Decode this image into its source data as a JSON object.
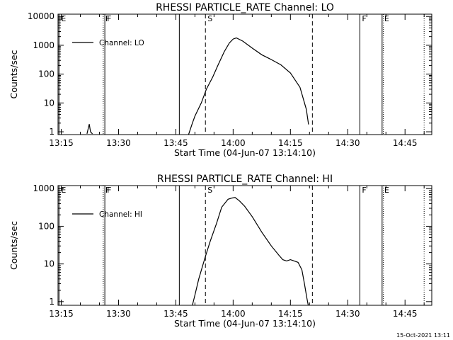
{
  "footer": {
    "timestamp": "15-Oct-2021 13:11"
  },
  "chart_data": [
    {
      "type": "line",
      "title": "RHESSI PARTICLE_RATE Channel: LO",
      "xlabel": "Start Time (04-Jun-07 13:14:10)",
      "ylabel": "Counts/sec",
      "yscale": "log",
      "ylim": [
        0.8,
        12000
      ],
      "xlim": [
        "13:14:10",
        "14:52:00"
      ],
      "x_ticks": [
        "13:15",
        "13:30",
        "13:45",
        "14:00",
        "14:15",
        "14:30",
        "14:45"
      ],
      "y_ticks": [
        "1",
        "10",
        "100",
        "1000",
        "10000"
      ],
      "legend": {
        "position": "top-left",
        "entries": [
          "Channel: LO"
        ]
      },
      "markers": [
        {
          "label": "E",
          "time": "13:14:25",
          "style": "solid"
        },
        {
          "label": "F",
          "time": "13:26:00",
          "style": "dotted"
        },
        {
          "label": "F",
          "time": "13:26:25",
          "style": "solid"
        },
        {
          "label": "",
          "time": "13:45:55",
          "style": "solid"
        },
        {
          "label": "S",
          "time": "13:52:45",
          "style": "dashed"
        },
        {
          "label": "",
          "time": "14:20:45",
          "style": "dashed"
        },
        {
          "label": "F",
          "time": "14:33:10",
          "style": "solid"
        },
        {
          "label": "E",
          "time": "14:39:00",
          "style": "solid"
        },
        {
          "label": "",
          "time": "14:39:20",
          "style": "dotted"
        },
        {
          "label": "",
          "time": "14:50:00",
          "style": "dotted"
        }
      ],
      "series": [
        {
          "name": "Channel: LO",
          "segments": [
            {
              "x": [
                "13:21:45",
                "13:22:20",
                "13:22:40",
                "13:23:10"
              ],
              "y": [
                0.85,
                1.85,
                1.0,
                0.85
              ]
            },
            {
              "x": [
                "13:48:20",
                "13:49:20",
                "13:50:00",
                "13:51:40",
                "13:53:00",
                "13:54:40",
                "13:56:00",
                "13:57:40",
                "13:59:00",
                "14:00:00",
                "14:00:50",
                "14:02:30",
                "14:05:00",
                "14:07:30",
                "14:10:00",
                "14:12:30",
                "14:15:00",
                "14:17:30",
                "14:19:10",
                "14:19:45"
              ],
              "y": [
                0.8,
                2,
                3.5,
                10,
                30,
                80,
                200,
                600,
                1200,
                1650,
                1800,
                1400,
                800,
                470,
                320,
                210,
                110,
                35,
                6,
                1.8
              ]
            }
          ]
        }
      ]
    },
    {
      "type": "line",
      "title": "RHESSI PARTICLE_RATE Channel: HI",
      "xlabel": "Start Time (04-Jun-07 13:14:10)",
      "ylabel": "Counts/sec",
      "yscale": "log",
      "ylim": [
        0.8,
        1200
      ],
      "xlim": [
        "13:14:10",
        "14:52:00"
      ],
      "x_ticks": [
        "13:15",
        "13:30",
        "13:45",
        "14:00",
        "14:15",
        "14:30",
        "14:45"
      ],
      "y_ticks": [
        "1",
        "10",
        "100",
        "1000"
      ],
      "legend": {
        "position": "top-left",
        "entries": [
          "Channel: HI"
        ]
      },
      "markers": [
        {
          "label": "E",
          "time": "13:14:25",
          "style": "solid"
        },
        {
          "label": "F",
          "time": "13:26:00",
          "style": "dotted"
        },
        {
          "label": "F",
          "time": "13:26:25",
          "style": "solid"
        },
        {
          "label": "",
          "time": "13:45:55",
          "style": "solid"
        },
        {
          "label": "S",
          "time": "13:52:45",
          "style": "dashed"
        },
        {
          "label": "",
          "time": "14:20:45",
          "style": "dashed"
        },
        {
          "label": "F",
          "time": "14:33:10",
          "style": "solid"
        },
        {
          "label": "E",
          "time": "14:39:00",
          "style": "solid"
        },
        {
          "label": "",
          "time": "14:39:20",
          "style": "dotted"
        },
        {
          "label": "",
          "time": "14:50:00",
          "style": "dotted"
        }
      ],
      "series": [
        {
          "name": "Channel: HI",
          "segments": [
            {
              "x": [
                "13:49:20",
                "13:50:00",
                "13:51:00",
                "13:52:40",
                "13:54:00",
                "13:55:40",
                "13:57:00",
                "13:58:40",
                "13:59:40",
                "14:00:30",
                "14:01:40",
                "14:03:00",
                "14:05:00",
                "14:07:30",
                "14:10:00",
                "14:12:00",
                "14:13:00",
                "14:14:00",
                "14:15:00",
                "14:16:00",
                "14:17:00",
                "14:18:00",
                "14:18:40",
                "14:19:20",
                "14:19:40"
              ],
              "y": [
                0.8,
                1.5,
                4,
                15,
                40,
                120,
                320,
                520,
                560,
                580,
                470,
                340,
                180,
                70,
                30,
                17,
                13,
                12,
                13,
                12,
                11,
                7,
                3,
                1.2,
                0.8
              ]
            }
          ]
        }
      ]
    }
  ]
}
